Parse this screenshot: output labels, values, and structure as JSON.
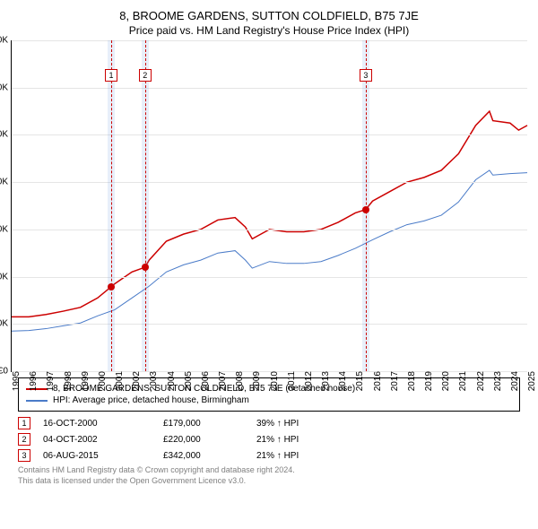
{
  "title": "8, BROOME GARDENS, SUTTON COLDFIELD, B75 7JE",
  "subtitle": "Price paid vs. HM Land Registry's House Price Index (HPI)",
  "chart": {
    "type": "line",
    "xlim": [
      1995,
      2025
    ],
    "ylim": [
      0,
      700000
    ],
    "ytick_step": 100000,
    "ytick_prefix": "£",
    "ytick_suffix": "K",
    "grid_color": "#e5e5e5",
    "background_color": "#ffffff",
    "xticks": [
      1995,
      1996,
      1997,
      1998,
      1999,
      2000,
      2001,
      2002,
      2003,
      2004,
      2005,
      2006,
      2007,
      2008,
      2009,
      2010,
      2011,
      2012,
      2013,
      2014,
      2015,
      2016,
      2017,
      2018,
      2019,
      2020,
      2021,
      2022,
      2023,
      2024,
      2025
    ],
    "series": [
      {
        "name": "property",
        "label": "8, BROOME GARDENS, SUTTON COLDFIELD, B75 7JE (detached house)",
        "color": "#cc0000",
        "line_width": 1.5,
        "data": [
          [
            1995,
            115000
          ],
          [
            1996,
            115000
          ],
          [
            1997,
            120000
          ],
          [
            1998,
            127000
          ],
          [
            1999,
            135000
          ],
          [
            2000,
            155000
          ],
          [
            2000.8,
            179000
          ],
          [
            2001,
            185000
          ],
          [
            2002,
            210000
          ],
          [
            2002.76,
            220000
          ],
          [
            2003,
            235000
          ],
          [
            2004,
            275000
          ],
          [
            2005,
            290000
          ],
          [
            2006,
            300000
          ],
          [
            2007,
            320000
          ],
          [
            2008,
            325000
          ],
          [
            2008.6,
            305000
          ],
          [
            2009,
            280000
          ],
          [
            2010,
            300000
          ],
          [
            2011,
            295000
          ],
          [
            2012,
            295000
          ],
          [
            2013,
            300000
          ],
          [
            2014,
            315000
          ],
          [
            2015,
            335000
          ],
          [
            2015.6,
            342000
          ],
          [
            2016,
            360000
          ],
          [
            2017,
            380000
          ],
          [
            2018,
            400000
          ],
          [
            2019,
            410000
          ],
          [
            2020,
            425000
          ],
          [
            2021,
            460000
          ],
          [
            2022,
            520000
          ],
          [
            2022.8,
            550000
          ],
          [
            2023,
            530000
          ],
          [
            2024,
            525000
          ],
          [
            2024.5,
            510000
          ],
          [
            2025,
            520000
          ]
        ]
      },
      {
        "name": "hpi",
        "label": "HPI: Average price, detached house, Birmingham",
        "color": "#4a7bc8",
        "line_width": 1,
        "data": [
          [
            1995,
            85000
          ],
          [
            1996,
            86000
          ],
          [
            1997,
            90000
          ],
          [
            1998,
            96000
          ],
          [
            1999,
            102000
          ],
          [
            2000,
            117000
          ],
          [
            2001,
            130000
          ],
          [
            2002,
            155000
          ],
          [
            2003,
            180000
          ],
          [
            2004,
            210000
          ],
          [
            2005,
            225000
          ],
          [
            2006,
            235000
          ],
          [
            2007,
            250000
          ],
          [
            2008,
            255000
          ],
          [
            2008.6,
            235000
          ],
          [
            2009,
            218000
          ],
          [
            2010,
            232000
          ],
          [
            2011,
            228000
          ],
          [
            2012,
            228000
          ],
          [
            2013,
            232000
          ],
          [
            2014,
            245000
          ],
          [
            2015,
            260000
          ],
          [
            2016,
            278000
          ],
          [
            2017,
            295000
          ],
          [
            2018,
            310000
          ],
          [
            2019,
            318000
          ],
          [
            2020,
            330000
          ],
          [
            2021,
            358000
          ],
          [
            2022,
            405000
          ],
          [
            2022.8,
            425000
          ],
          [
            2023,
            415000
          ],
          [
            2024,
            418000
          ],
          [
            2025,
            420000
          ]
        ]
      }
    ],
    "event_markers": [
      {
        "num": "1",
        "x": 2000.79,
        "price": 179000,
        "band_width": 0.4
      },
      {
        "num": "2",
        "x": 2002.76,
        "price": 220000,
        "band_width": 0.4
      },
      {
        "num": "3",
        "x": 2015.6,
        "price": 342000,
        "band_width": 0.4
      }
    ],
    "marker_box_color": "#cc0000",
    "band_color": "rgba(100,150,220,0.15)",
    "point_color": "#cc0000"
  },
  "legend": {
    "items": [
      {
        "color": "#cc0000",
        "label": "8, BROOME GARDENS, SUTTON COLDFIELD, B75 7JE (detached house)"
      },
      {
        "color": "#4a7bc8",
        "label": "HPI: Average price, detached house, Birmingham"
      }
    ]
  },
  "events": [
    {
      "num": "1",
      "date": "16-OCT-2000",
      "price": "£179,000",
      "delta": "39% ↑ HPI"
    },
    {
      "num": "2",
      "date": "04-OCT-2002",
      "price": "£220,000",
      "delta": "21% ↑ HPI"
    },
    {
      "num": "3",
      "date": "06-AUG-2015",
      "price": "£342,000",
      "delta": "21% ↑ HPI"
    }
  ],
  "footer": {
    "line1": "Contains HM Land Registry data © Crown copyright and database right 2024.",
    "line2": "This data is licensed under the Open Government Licence v3.0."
  }
}
